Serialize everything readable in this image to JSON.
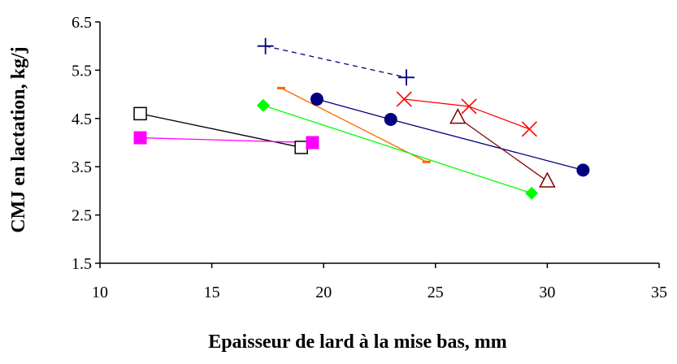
{
  "chart_data": {
    "type": "scatter",
    "title": "",
    "xlabel": "Epaisseur de lard à la mise bas, mm",
    "ylabel": "CMJ en lactation, kg/j",
    "xlim": [
      10,
      35
    ],
    "ylim": [
      1.5,
      6.5
    ],
    "xticks": [
      "10",
      "15",
      "20",
      "25",
      "30",
      "35"
    ],
    "yticks": [
      "1.5",
      "2.5",
      "3.5",
      "4.5",
      "5.5",
      "6.5"
    ],
    "grid": false,
    "legend": "none",
    "series": [
      {
        "marker": "plus",
        "color": "#000080",
        "line": "dashed",
        "points": [
          [
            17.4,
            6.0
          ],
          [
            23.7,
            5.35
          ]
        ]
      },
      {
        "marker": "cross",
        "color": "#ff0000",
        "line": "solid",
        "points": [
          [
            23.6,
            4.9
          ],
          [
            26.5,
            4.75
          ],
          [
            29.2,
            4.28
          ]
        ]
      },
      {
        "marker": "circle",
        "color": "#000080",
        "line": "solid",
        "points": [
          [
            19.7,
            4.9
          ],
          [
            23.0,
            4.48
          ],
          [
            31.6,
            3.43
          ]
        ]
      },
      {
        "marker": "dash",
        "color": "#ff6600",
        "line": "solid",
        "points": [
          [
            18.1,
            5.13
          ],
          [
            24.6,
            3.6
          ]
        ]
      },
      {
        "marker": "diamond",
        "color": "#00ff00",
        "line": "solid",
        "points": [
          [
            17.3,
            4.77
          ],
          [
            29.3,
            2.95
          ]
        ]
      },
      {
        "marker": "triangle-open",
        "color": "#800000",
        "line": "solid",
        "points": [
          [
            26.0,
            4.52
          ],
          [
            30.0,
            3.2
          ]
        ]
      },
      {
        "marker": "square-open",
        "color": "#000000",
        "line": "solid",
        "points": [
          [
            11.8,
            4.6
          ],
          [
            19.0,
            3.9
          ]
        ]
      },
      {
        "marker": "square",
        "color": "#ff00ff",
        "line": "solid",
        "points": [
          [
            11.8,
            4.1
          ],
          [
            19.5,
            4.0
          ]
        ]
      }
    ]
  }
}
